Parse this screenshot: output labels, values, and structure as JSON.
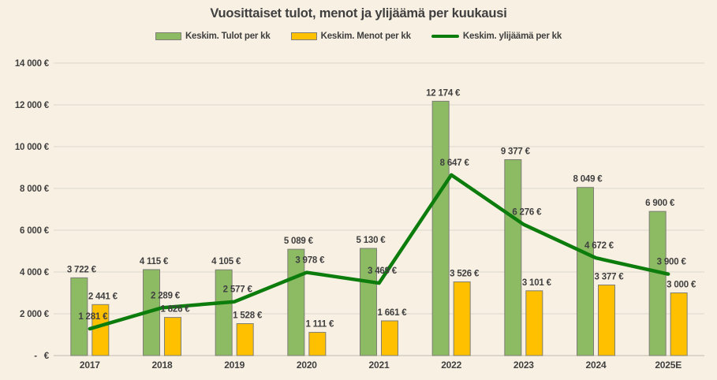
{
  "title": "Vuosittaiset tulot, menot ja ylijäämä per kuukausi",
  "legend": [
    {
      "label": "Keskim. Tulot per kk",
      "type": "bar",
      "color": "#8CBB64"
    },
    {
      "label": "Keskim. Menot per kk",
      "type": "bar",
      "color": "#FFC000"
    },
    {
      "label": "Keskim. ylijäämä per kk",
      "type": "line",
      "color": "#0C7D0C"
    }
  ],
  "colors": {
    "background": "#F8F0E3",
    "gridline": "#DAD6CD",
    "axis_line": "#BFBBB2",
    "bar_border": "#7E7E76",
    "income_bar": "#8CBB64",
    "expense_bar": "#FFC000",
    "surplus_line": "#0C7D0C",
    "text": "#3F3F3F"
  },
  "chart_data": {
    "type": "bar",
    "subtype": "grouped-bars-with-line",
    "title": "Vuosittaiset tulot, menot ja ylijäämä per kuukausi",
    "categories": [
      "2017",
      "2018",
      "2019",
      "2020",
      "2021",
      "2022",
      "2023",
      "2024",
      "2025E"
    ],
    "series": [
      {
        "name": "Keskim. Tulot per kk",
        "type": "bar",
        "color": "#8CBB64",
        "values": [
          3722,
          4115,
          4105,
          5089,
          5130,
          12174,
          9377,
          8049,
          6900
        ],
        "labels": [
          "3 722 €",
          "4 115 €",
          "4 105 €",
          "5 089 €",
          "5 130 €",
          "12 174 €",
          "9 377 €",
          "8 049 €",
          "6 900 €"
        ]
      },
      {
        "name": "Keskim. Menot per kk",
        "type": "bar",
        "color": "#FFC000",
        "values": [
          2441,
          1826,
          1528,
          1111,
          1661,
          3526,
          3101,
          3377,
          3000
        ],
        "labels": [
          "2 441 €",
          "1 826 €",
          "1 528 €",
          "1 111 €",
          "1 661 €",
          "3 526 €",
          "3 101 €",
          "3 377 €",
          "3 000 €"
        ]
      },
      {
        "name": "Keskim. ylijäämä per kk",
        "type": "line",
        "color": "#0C7D0C",
        "values": [
          1281,
          2289,
          2577,
          3978,
          3469,
          8647,
          6276,
          4672,
          3900
        ],
        "labels": [
          "1 281 €",
          "2 289 €",
          "2 577 €",
          "3 978 €",
          "3 469 €",
          "8 647 €",
          "6 276 €",
          "4 672 €",
          "3 900 €"
        ]
      }
    ],
    "xlabel": "",
    "ylabel": "",
    "ylim": [
      0,
      14000
    ],
    "y_ticks": {
      "values": [
        0,
        2000,
        4000,
        6000,
        8000,
        10000,
        12000,
        14000
      ],
      "labels": [
        "-   €",
        "2 000 €",
        "4 000 €",
        "6 000 €",
        "8 000 €",
        "10 000 €",
        "12 000 €",
        "14 000 €"
      ]
    },
    "grid": true,
    "legend_position": "top"
  }
}
